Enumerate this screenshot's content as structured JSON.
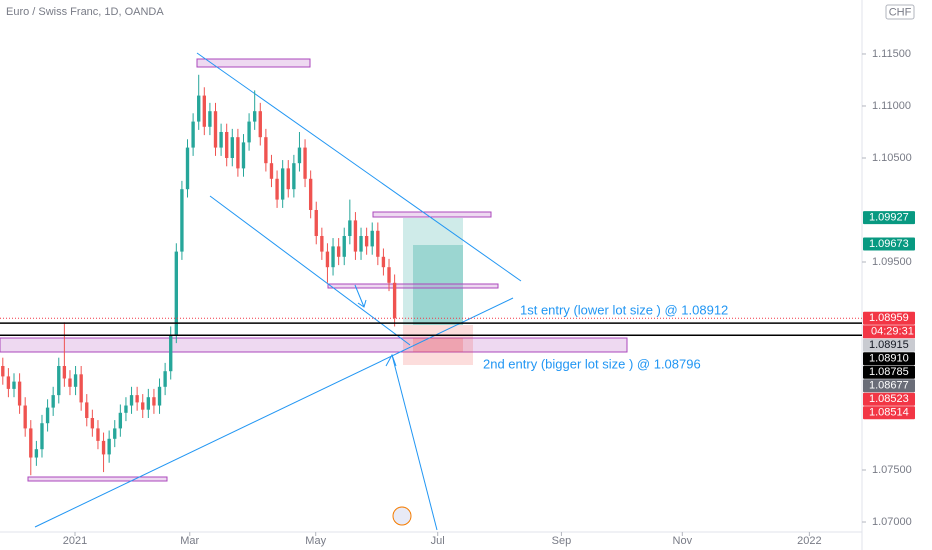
{
  "chart_data": {
    "type": "candlestick",
    "title": "Euro / Swiss Franc, 1D, OANDA",
    "currency": "CHF",
    "up_color": "#26a69a",
    "down_color": "#ef5350",
    "xlim": [
      -0.5,
      153.5
    ],
    "xticks": [
      {
        "value": 12.9,
        "label": "2021"
      },
      {
        "value": 33.4,
        "label": "Mar"
      },
      {
        "value": 55.9,
        "label": "May"
      },
      {
        "value": 77.7,
        "label": "Jul"
      },
      {
        "value": 99.8,
        "label": "Sep"
      },
      {
        "value": 121.4,
        "label": "Nov"
      },
      {
        "value": 144.1,
        "label": "2022"
      }
    ],
    "ylim": [
      1.06904,
      1.12019
    ],
    "yticks": [
      {
        "value": 1.115,
        "label": "1.11500"
      },
      {
        "value": 1.11,
        "label": "1.11000"
      },
      {
        "value": 1.105,
        "label": "1.10500"
      },
      {
        "value": 1.095,
        "label": "1.09500"
      },
      {
        "value": 1.075,
        "label": "1.07500"
      },
      {
        "value": 1.07,
        "label": "1.07000"
      }
    ],
    "open": [
      1.085,
      1.084,
      1.0828,
      1.0835,
      1.0812,
      1.079,
      1.0762,
      1.077,
      1.0795,
      1.081,
      1.0822,
      1.085,
      1.0838,
      1.083,
      1.0842,
      1.0815,
      1.08,
      1.079,
      1.0778,
      1.0765,
      1.078,
      1.079,
      1.0805,
      1.0812,
      1.0822,
      1.0815,
      1.0808,
      1.082,
      1.0812,
      1.083,
      1.0845,
      1.088,
      1.096,
      1.102,
      1.106,
      1.1085,
      1.111,
      1.108,
      1.1095,
      1.106,
      1.1075,
      1.105,
      1.107,
      1.104,
      1.1065,
      1.1085,
      1.1095,
      1.107,
      1.1045,
      1.103,
      1.101,
      1.104,
      1.102,
      1.1045,
      1.106,
      1.103,
      1.1,
      1.0975,
      1.096,
      1.0945,
      1.0965,
      1.0955,
      1.0975,
      1.099,
      1.096,
      1.0975,
      1.0965,
      1.098,
      1.0955,
      1.0945,
      1.093
    ],
    "high": [
      1.0858,
      1.0848,
      1.0843,
      1.0843,
      1.082,
      1.0798,
      1.0778,
      1.0803,
      1.0818,
      1.083,
      1.0858,
      1.0892,
      1.0846,
      1.085,
      1.085,
      1.0823,
      1.0808,
      1.0798,
      1.0786,
      1.0788,
      1.0798,
      1.0813,
      1.082,
      1.083,
      1.083,
      1.0823,
      1.0828,
      1.0828,
      1.0838,
      1.0853,
      1.0888,
      1.0968,
      1.1028,
      1.1068,
      1.1093,
      1.113,
      1.1118,
      1.1103,
      1.1103,
      1.1083,
      1.1083,
      1.1078,
      1.1078,
      1.1073,
      1.1093,
      1.1115,
      1.1103,
      1.1078,
      1.1053,
      1.1038,
      1.1048,
      1.1048,
      1.1053,
      1.1075,
      1.1068,
      1.1038,
      1.1008,
      1.0983,
      1.0968,
      1.0973,
      1.0973,
      1.0983,
      1.101,
      1.0998,
      1.0983,
      1.0983,
      1.0988,
      1.0988,
      1.0963,
      1.0953,
      1.0938
    ],
    "low": [
      1.0832,
      1.082,
      1.082,
      1.0804,
      1.0782,
      1.0745,
      1.0754,
      1.0762,
      1.0787,
      1.0802,
      1.0814,
      1.083,
      1.0822,
      1.0822,
      1.0807,
      1.0792,
      1.0782,
      1.077,
      1.0748,
      1.0757,
      1.0772,
      1.0782,
      1.0797,
      1.0804,
      1.0807,
      1.08,
      1.08,
      1.0804,
      1.0804,
      1.0822,
      1.0837,
      1.0872,
      1.0952,
      1.1012,
      1.1052,
      1.1077,
      1.1072,
      1.1072,
      1.1052,
      1.1052,
      1.1042,
      1.1042,
      1.1032,
      1.1032,
      1.1057,
      1.1077,
      1.1062,
      1.1037,
      1.1022,
      1.1002,
      1.1002,
      1.1012,
      1.1012,
      1.1037,
      1.1022,
      1.0992,
      1.0967,
      1.0952,
      1.093,
      1.0937,
      1.0947,
      1.0947,
      1.0967,
      1.0952,
      1.0952,
      1.0957,
      1.0957,
      1.0947,
      1.0937,
      1.0922,
      1.0888
    ],
    "close": [
      1.084,
      1.0828,
      1.0835,
      1.0812,
      1.079,
      1.0762,
      1.077,
      1.0795,
      1.081,
      1.0822,
      1.085,
      1.0838,
      1.083,
      1.0842,
      1.0815,
      1.08,
      1.079,
      1.0778,
      1.0765,
      1.078,
      1.079,
      1.0805,
      1.0812,
      1.0822,
      1.0815,
      1.0808,
      1.082,
      1.0812,
      1.083,
      1.0845,
      1.088,
      1.096,
      1.102,
      1.106,
      1.1085,
      1.111,
      1.108,
      1.1095,
      1.106,
      1.1075,
      1.105,
      1.107,
      1.104,
      1.1065,
      1.1085,
      1.1095,
      1.107,
      1.1045,
      1.103,
      1.101,
      1.104,
      1.102,
      1.1045,
      1.106,
      1.103,
      1.1,
      1.0975,
      1.096,
      1.0945,
      1.0965,
      1.0955,
      1.0975,
      1.099,
      1.096,
      1.0975,
      1.0965,
      1.098,
      1.0955,
      1.0945,
      1.093,
      1.0896
    ],
    "price_labels": [
      {
        "value": 1.09927,
        "label": "1.09927",
        "color": "#089981"
      },
      {
        "value": 1.09673,
        "label": "1.09673",
        "color": "#089981"
      },
      {
        "value": 1.08959,
        "label": "1.08959",
        "color": "#f23645",
        "countdown": "04:29:31"
      },
      {
        "value": 1.08915,
        "label": "1.08915",
        "color": "#c9cbd1"
      },
      {
        "value": 1.0891,
        "label": "1.08910",
        "color": "#000000"
      },
      {
        "value": 1.08785,
        "label": "1.08785",
        "color": "#000000"
      },
      {
        "value": 1.08677,
        "label": "1.08677",
        "color": "#6a6d78"
      },
      {
        "value": 1.08523,
        "label": "1.08523",
        "color": "#f23645"
      },
      {
        "value": 1.08514,
        "label": "1.08514",
        "color": "#f23645"
      }
    ],
    "annotations": [
      {
        "text": "1st entry (lower lot size ) @ 1.08912",
        "value": 1.08912
      },
      {
        "text": "2nd entry (bigger lot size ) @ 1.08796",
        "value": 1.08796
      }
    ]
  }
}
